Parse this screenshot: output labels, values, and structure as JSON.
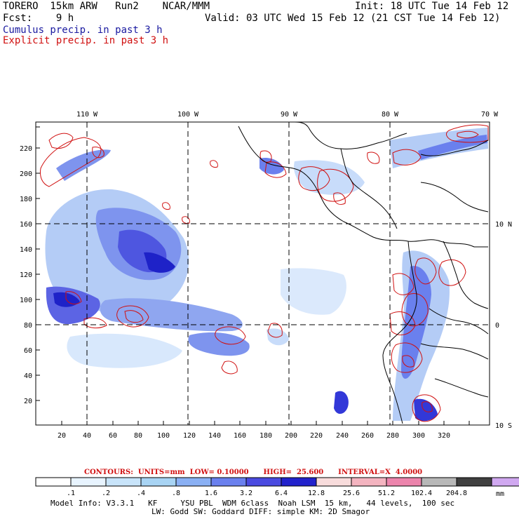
{
  "header": {
    "title": "TORERO  15km ARW   Run2    NCAR/MMM",
    "init": "Init: 18 UTC Tue 14 Feb 12",
    "fcst": "Fcst:    9 h",
    "valid": "Valid: 03 UTC Wed 15 Feb 12 (21 CST Tue 14 Feb 12)",
    "cumulus_label": "Cumulus precip. in past 3 h",
    "explicit_label": "Explicit precip. in past 3 h"
  },
  "colors": {
    "cumulus": "#1a1aa0",
    "explicit": "#d01010",
    "grid": "#000000"
  },
  "map": {
    "x_ticks": [
      "20",
      "40",
      "60",
      "80",
      "100",
      "120",
      "140",
      "160",
      "180",
      "200",
      "220",
      "240",
      "260",
      "280",
      "300",
      "320"
    ],
    "y_ticks": [
      "20",
      "40",
      "60",
      "80",
      "100",
      "120",
      "140",
      "160",
      "180",
      "200",
      "220"
    ],
    "lon_labels": [
      "110 W",
      "100 W",
      "90 W",
      "80 W",
      "70 W"
    ],
    "lat_labels": [
      "10 N",
      "0",
      "10 S"
    ]
  },
  "contours": {
    "text": "CONTOURS:  UNITS=mm  LOW= 0.10000      HIGH=  25.600      INTERVAL=X  4.0000"
  },
  "colorbar": {
    "colors": [
      "#ffffff",
      "#e8f4ff",
      "#c8e4fa",
      "#a8d4f4",
      "#8ab0f4",
      "#6a80ee",
      "#4a4ae0",
      "#2222cc",
      "#f8dcdc",
      "#f4b4c0",
      "#ec84ac",
      "#b8b8b8",
      "#404040",
      "#d0a8f0"
    ],
    "labels": [
      ".1",
      ".2",
      ".4",
      ".8",
      "1.6",
      "3.2",
      "6.4",
      "12.8",
      "25.6",
      "51.2",
      "102.4",
      "204.8"
    ],
    "units": "mm"
  },
  "model_info": {
    "line1": "Model Info: V3.3.1   KF     YSU PBL  WDM 6class  Noah LSM  15 km,   44 levels,  100 sec",
    "line2": "LW: Godd SW: Goddard DIFF: simple KM: 2D Smagor"
  }
}
